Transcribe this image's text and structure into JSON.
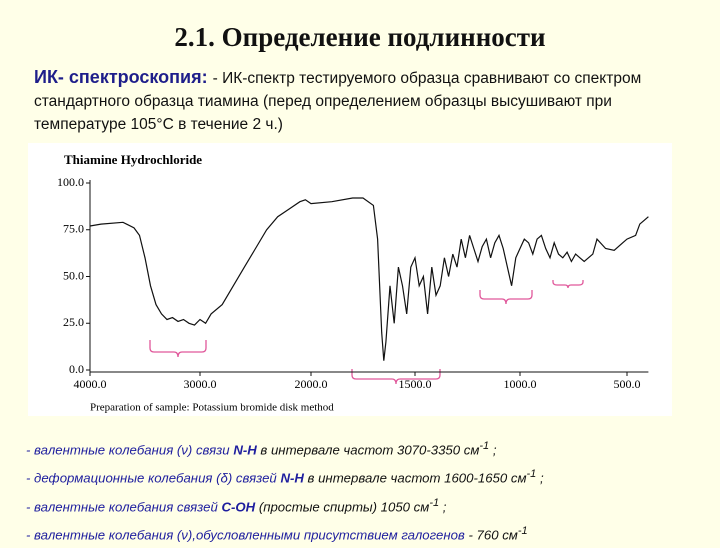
{
  "title": "2.1. Определение подлинности",
  "intro": {
    "lead": "ИК- спектроскопия: ",
    "text": "- ИК-спектр тестируемого образца сравнивают со спектром стандартного образца тиамина (перед определением образцы высушивают при температуре 105°С  в течение 2 ч.)"
  },
  "chart_data": {
    "type": "line",
    "title": "Thiamine Hydrochloride",
    "footer": "Preparation of sample: Potassium bromide disk method",
    "color": "#111111",
    "x": [
      4000,
      3900,
      3700,
      3600,
      3550,
      3500,
      3450,
      3400,
      3350,
      3300,
      3250,
      3200,
      3150,
      3100,
      3050,
      3000,
      2950,
      2900,
      2800,
      2700,
      2600,
      2500,
      2400,
      2300,
      2200,
      2100,
      2050,
      2000,
      1900,
      1800,
      1750,
      1700,
      1680,
      1660,
      1650,
      1640,
      1620,
      1600,
      1580,
      1560,
      1540,
      1520,
      1500,
      1480,
      1460,
      1440,
      1420,
      1400,
      1380,
      1360,
      1340,
      1320,
      1300,
      1280,
      1260,
      1240,
      1220,
      1200,
      1180,
      1160,
      1140,
      1120,
      1100,
      1080,
      1060,
      1040,
      1020,
      1000,
      980,
      960,
      940,
      920,
      900,
      880,
      860,
      840,
      820,
      800,
      780,
      760,
      740,
      720,
      700,
      660,
      640,
      600,
      560,
      520,
      500,
      460,
      440,
      420,
      400
    ],
    "values": [
      77,
      78,
      79,
      76,
      72,
      60,
      45,
      35,
      30,
      27,
      28,
      26,
      27,
      25,
      24,
      27,
      25,
      30,
      35,
      45,
      55,
      65,
      75,
      82,
      86,
      90,
      91,
      89,
      90,
      92,
      92,
      88,
      70,
      20,
      5,
      15,
      45,
      25,
      55,
      45,
      30,
      55,
      60,
      45,
      50,
      30,
      55,
      40,
      45,
      60,
      50,
      62,
      55,
      70,
      60,
      72,
      65,
      58,
      66,
      70,
      60,
      68,
      72,
      65,
      55,
      45,
      60,
      65,
      70,
      68,
      62,
      70,
      72,
      65,
      60,
      68,
      62,
      60,
      63,
      58,
      62,
      60,
      58,
      62,
      70,
      65,
      64,
      68,
      70,
      72,
      78,
      80,
      82
    ],
    "xlim": [
      4000,
      400
    ],
    "ylim": [
      0,
      100
    ],
    "xticks": [
      {
        "value": 4000,
        "label": "4000.0"
      },
      {
        "value": 3000,
        "label": "3000.0"
      },
      {
        "value": 2000,
        "label": "2000.0"
      },
      {
        "value": 1500,
        "label": "1500.0"
      },
      {
        "value": 1000,
        "label": "1000.0"
      },
      {
        "value": 500,
        "label": "500.0"
      }
    ],
    "yticks": [
      {
        "value": 0,
        "label": "0.0"
      },
      {
        "value": 25,
        "label": "25.0"
      },
      {
        "value": 50,
        "label": "50.0"
      },
      {
        "value": 75,
        "label": "75.0"
      },
      {
        "value": 100,
        "label": "100.0"
      }
    ]
  },
  "notes": [
    [
      "- валентные колебания (ν) связи ",
      "N-H",
      " в интервале частот 3070-3350 см",
      "-1",
      " ;"
    ],
    [
      "- деформационные колебания (δ) связей ",
      "N-H",
      "  в интервале частот 1600-1650 см",
      "-1",
      " ;"
    ],
    [
      "- валентные колебания связей ",
      "С-ОН",
      " (простые спирты) 1050 см",
      "-1",
      " ;"
    ],
    [
      "- валентные колебания (ν),обусловленными присутствием галогенов",
      " - 760 см",
      "-1"
    ]
  ]
}
